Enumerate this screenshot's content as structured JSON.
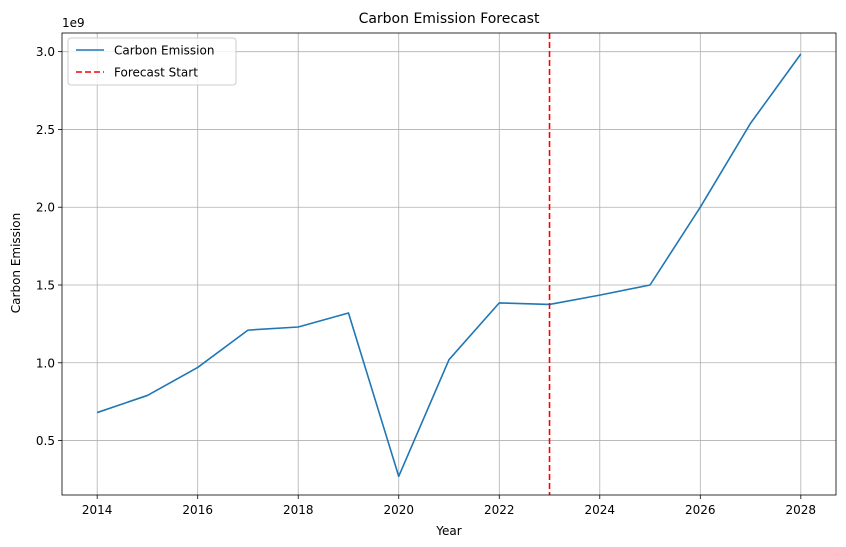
{
  "chart_data": {
    "type": "line",
    "title": "Carbon Emission Forecast",
    "xlabel": "Year",
    "ylabel": "Carbon Emission",
    "y_offset_label": "1e9",
    "xlim": [
      2013.3,
      2028.7
    ],
    "ylim": [
      0.15,
      3.12
    ],
    "y_scale_note": "values in units of 1e9",
    "grid": true,
    "legend_position": "top-left",
    "x_ticks": [
      "2014",
      "2016",
      "2018",
      "2020",
      "2022",
      "2024",
      "2026",
      "2028"
    ],
    "y_ticks": [
      "0.5",
      "1.0",
      "1.5",
      "2.0",
      "2.5",
      "3.0"
    ],
    "series": [
      {
        "name": "Carbon Emission",
        "color": "#1f77b4",
        "x": [
          2014,
          2015,
          2016,
          2017,
          2018,
          2019,
          2020,
          2021,
          2022,
          2023,
          2024,
          2025,
          2026,
          2027,
          2028
        ],
        "y": [
          0.68,
          0.79,
          0.97,
          1.21,
          1.23,
          1.32,
          0.27,
          1.02,
          1.385,
          1.375,
          1.435,
          1.5,
          2.0,
          2.54,
          2.985
        ]
      }
    ],
    "vlines": [
      {
        "name": "Forecast Start",
        "x": 2023,
        "color": "#ff0000",
        "style": "dashed"
      }
    ]
  }
}
